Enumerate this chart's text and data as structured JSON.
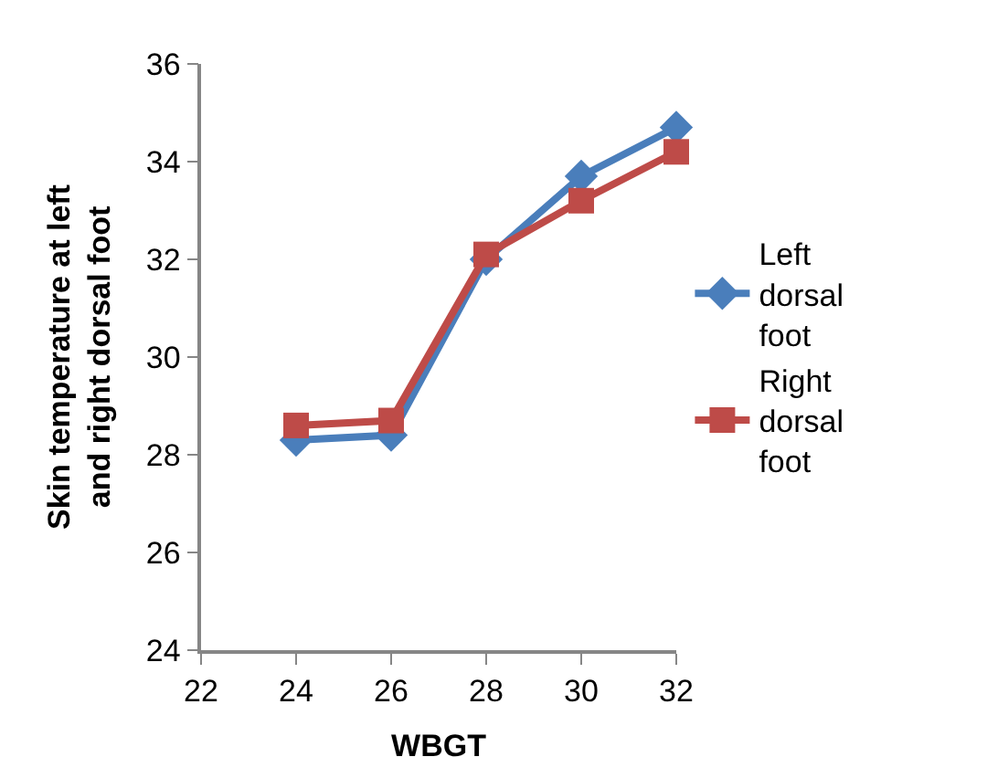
{
  "chart_data": {
    "type": "line",
    "xlabel": "WBGT",
    "ylabel": "Skin temperature at left and right dorsal foot",
    "x": [
      24,
      26,
      28,
      30,
      32
    ],
    "series": [
      {
        "name": "Left dorsal foot",
        "color": "#4a7ebb",
        "values": [
          28.3,
          28.4,
          32.0,
          33.7,
          34.7
        ],
        "marker": "diamond"
      },
      {
        "name": "Right dorsal foot",
        "color": "#be4b48",
        "values": [
          28.6,
          28.7,
          32.1,
          33.2,
          34.2
        ],
        "marker": "square"
      }
    ],
    "xlim": [
      22,
      32
    ],
    "xticks": [
      22,
      24,
      26,
      28,
      30,
      32
    ],
    "ylim": [
      24,
      36
    ],
    "yticks": [
      24,
      26,
      28,
      30,
      32,
      34,
      36
    ],
    "legend": "right",
    "line_style": "solid"
  }
}
